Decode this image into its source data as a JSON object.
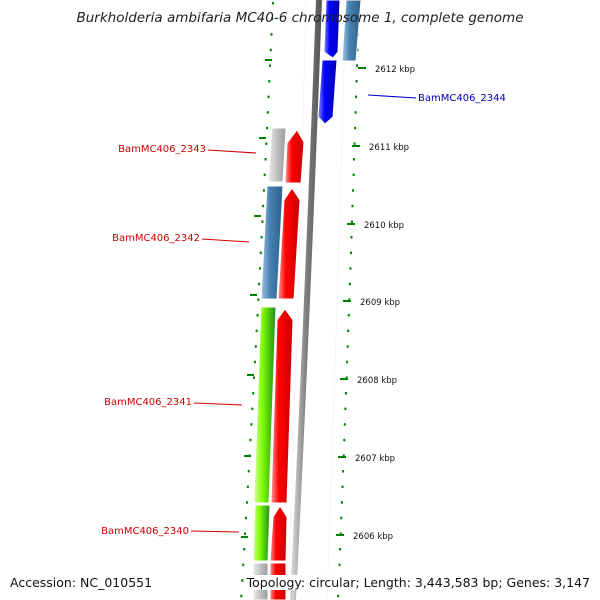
{
  "title": "Burkholderia ambifaria MC40-6 chromosome 1, complete genome",
  "accession": "Accession: NC_010551",
  "topology": "Topology: circular; Length: 3,443,583 bp; Genes: 3,147",
  "colors": {
    "forward_cds": "#ff0000",
    "reverse_cds": "#0000ff",
    "blue_feature": "#4682b4",
    "green_feature": "#7cfc00",
    "grey_feature": "#c0c0c0",
    "backbone": "#808080",
    "tick": "#008000"
  },
  "ticks": [
    {
      "label": "2612 kbp"
    },
    {
      "label": "2611 kbp"
    },
    {
      "label": "2610 kbp"
    },
    {
      "label": "2609 kbp"
    },
    {
      "label": "2608 kbp"
    },
    {
      "label": "2607 kbp"
    },
    {
      "label": "2606 kbp"
    }
  ],
  "genes": [
    {
      "label": "BamMC406_2344",
      "color": "#0000ff"
    },
    {
      "label": "BamMC406_2343",
      "color": "#cc0000"
    },
    {
      "label": "BamMC406_2342",
      "color": "#cc0000"
    },
    {
      "label": "BamMC406_2341",
      "color": "#cc0000"
    },
    {
      "label": "BamMC406_2340",
      "color": "#cc0000"
    }
  ]
}
